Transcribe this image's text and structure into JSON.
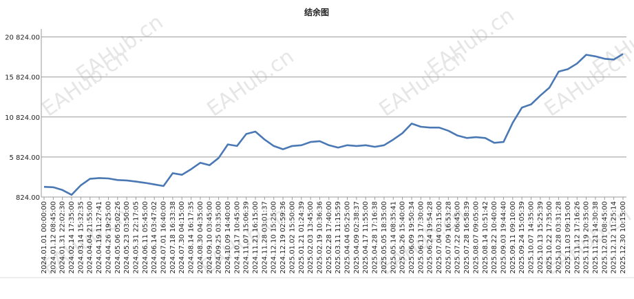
{
  "chart_data": {
    "type": "line",
    "title": "结余图",
    "watermark": "EAHub.cn",
    "categories": [
      "2024.01.01 00:00:00",
      "2024.01.12 08:45:00",
      "2024.01.31 22:02:30",
      "2024.02.14 17:35:00",
      "2024.03.14 15:32:35",
      "2024.04.04 21:55:00",
      "2024.04.19 11:27:41",
      "2024.04.26 19:25:00",
      "2024.05.06 05:02:26",
      "2024.05.23 03:50:00",
      "2024.05.31 22:17:05",
      "2024.06.11 05:45:00",
      "2024.06.14 03:47:02",
      "2024.07.01 16:40:00",
      "2024.07.18 16:33:38",
      "2024.07.30 04:15:00",
      "2024.08.14 16:17:35",
      "2024.08.30 04:35:00",
      "2024.09.10 03:45:00",
      "2024.09.25 03:35:00",
      "2024.10.09 14:40:00",
      "2024.10.17 10:45:00",
      "2024.11.07 15:06:39",
      "2024.11.21 16:15:00",
      "2024.11.28 03:01:37",
      "2024.12.10 15:25:00",
      "2024.12.19 02:59:36",
      "2025.01.02 15:50:00",
      "2025.01.21 01:24:39",
      "2025.02.03 13:45:00",
      "2025.02.19 10:36:36",
      "2025.02.28 17:40:00",
      "2025.03.11 11:15:59",
      "2025.04.04 05:25:00",
      "2025.04.09 02:38:37",
      "2025.04.17 11:55:00",
      "2025.04.28 17:16:38",
      "2025.05.05 18:35:00",
      "2025.05.14 08:35:41",
      "2025.05.26 15:40:00",
      "2025.06.09 19:50:34",
      "2025.06.13 17:30:00",
      "2025.06.24 19:54:28",
      "2025.07.04 03:15:00",
      "2025.07.09 16:53:28",
      "2025.07.22 06:45:00",
      "2025.07.28 16:58:39",
      "2025.08.07 09:05:00",
      "2025.08.14 10:51:42",
      "2025.08.22 10:40:00",
      "2025.09.03 19:44:40",
      "2025.09.11 09:10:00",
      "2025.09.24 15:05:39",
      "2025.10.07 14:35:00",
      "2025.10.13 15:25:39",
      "2025.10.22 17:35:00",
      "2025.10.28 03:31:28",
      "2025.11.03 09:15:00",
      "2025.11.12 17:16:26",
      "2025.11.19 20:35:00",
      "2025.11.21 14:30:38",
      "2025.12.01 08:45:00",
      "2025.12.12 11:25:14",
      "2025.12.30 10:15:00"
    ],
    "series": [
      {
        "name": "结余",
        "color": "#4a78b5",
        "values": [
          2100,
          2050,
          1700,
          1100,
          2300,
          3100,
          3200,
          3150,
          2950,
          2900,
          2750,
          2600,
          2400,
          2200,
          3800,
          3600,
          4300,
          5100,
          4800,
          5700,
          7400,
          7200,
          8700,
          9000,
          8000,
          7200,
          6800,
          7200,
          7300,
          7700,
          7800,
          7300,
          7000,
          7300,
          7200,
          7300,
          7100,
          7300,
          8000,
          8800,
          10000,
          9600,
          9500,
          9500,
          9100,
          8500,
          8200,
          8300,
          8200,
          7600,
          7700,
          10100,
          12000,
          12400,
          13500,
          14500,
          16500,
          16800,
          17500,
          18600,
          18400,
          18100,
          18000,
          18700
        ]
      }
    ],
    "ylim": [
      824,
      21824
    ],
    "yticks": [
      {
        "value": 824,
        "label": "824.00"
      },
      {
        "value": 5824,
        "label": "5 824.00"
      },
      {
        "value": 10824,
        "label": "10 824.00"
      },
      {
        "value": 15824,
        "label": "15 824.00"
      },
      {
        "value": 20824,
        "label": "20 824.00"
      }
    ],
    "grid": true
  }
}
